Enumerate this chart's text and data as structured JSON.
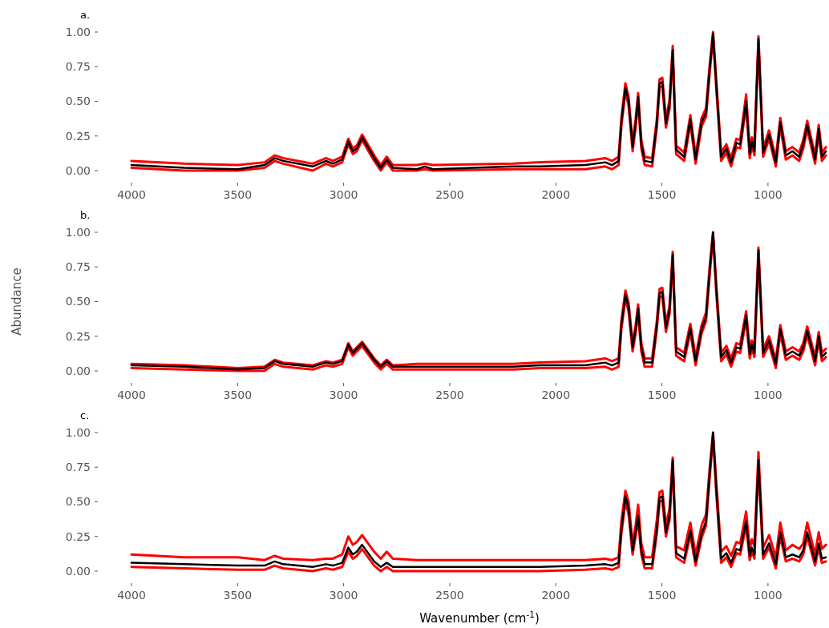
{
  "chart_data": [
    {
      "type": "line",
      "title": "a.",
      "x": [
        4000,
        3751,
        3498,
        3373,
        3325,
        3285,
        3146,
        3083,
        3051,
        3007,
        2978,
        2957,
        2938,
        2913,
        2856,
        2825,
        2797,
        2768,
        2655,
        2617,
        2579,
        2201,
        2075,
        1861,
        1767,
        1735,
        1704,
        1691,
        1672,
        1657,
        1638,
        1624,
        1612,
        1597,
        1581,
        1546,
        1524,
        1511,
        1498,
        1481,
        1464,
        1449,
        1433,
        1395,
        1366,
        1341,
        1313,
        1292,
        1275,
        1259,
        1244,
        1221,
        1196,
        1174,
        1149,
        1131,
        1103,
        1086,
        1076,
        1064,
        1045,
        1023,
        995,
        963,
        942,
        916,
        885,
        853,
        834,
        815,
        778,
        761,
        746,
        727
      ],
      "xlim": [
        4000,
        720
      ],
      "xticks": [
        4000,
        3500,
        3000,
        2500,
        2000,
        1500,
        1000
      ],
      "ylim": [
        0,
        1
      ],
      "yticks": [
        {
          "value": 0,
          "label": "0.00"
        },
        {
          "value": 0.25,
          "label": "0.25"
        },
        {
          "value": 0.5,
          "label": "0.50"
        },
        {
          "value": 0.75,
          "label": "0.75"
        },
        {
          "value": 1,
          "label": "1.00"
        }
      ],
      "grid": false,
      "line_style": "solid",
      "marker": "none",
      "series": [
        {
          "color": "#ff0000",
          "values": [
            0.02,
            0.0,
            0.0,
            0.02,
            0.07,
            0.05,
            0.0,
            0.05,
            0.03,
            0.06,
            0.19,
            0.12,
            0.14,
            0.22,
            0.07,
            0.0,
            0.06,
            0.0,
            0.0,
            0.01,
            0.0,
            0.01,
            0.01,
            0.01,
            0.03,
            0.01,
            0.04,
            0.32,
            0.57,
            0.47,
            0.14,
            0.31,
            0.5,
            0.16,
            0.04,
            0.03,
            0.31,
            0.6,
            0.61,
            0.31,
            0.45,
            0.84,
            0.12,
            0.07,
            0.34,
            0.05,
            0.32,
            0.39,
            0.7,
            0.97,
            0.6,
            0.07,
            0.13,
            0.03,
            0.17,
            0.16,
            0.47,
            0.09,
            0.18,
            0.11,
            0.92,
            0.1,
            0.23,
            0.03,
            0.32,
            0.08,
            0.11,
            0.07,
            0.16,
            0.3,
            0.05,
            0.27,
            0.07,
            0.11
          ]
        },
        {
          "color": "#ff0000",
          "values": [
            0.07,
            0.05,
            0.04,
            0.06,
            0.11,
            0.09,
            0.05,
            0.09,
            0.07,
            0.1,
            0.23,
            0.16,
            0.18,
            0.26,
            0.11,
            0.04,
            0.1,
            0.04,
            0.04,
            0.05,
            0.04,
            0.05,
            0.06,
            0.07,
            0.09,
            0.07,
            0.1,
            0.38,
            0.63,
            0.53,
            0.2,
            0.37,
            0.56,
            0.22,
            0.1,
            0.09,
            0.37,
            0.66,
            0.67,
            0.37,
            0.51,
            0.9,
            0.18,
            0.13,
            0.4,
            0.11,
            0.38,
            0.45,
            0.76,
            1.0,
            0.66,
            0.13,
            0.19,
            0.09,
            0.23,
            0.22,
            0.55,
            0.15,
            0.24,
            0.17,
            0.97,
            0.16,
            0.29,
            0.09,
            0.38,
            0.14,
            0.17,
            0.13,
            0.22,
            0.36,
            0.11,
            0.33,
            0.13,
            0.17
          ]
        },
        {
          "color": "#000000",
          "values": [
            0.04,
            0.02,
            0.01,
            0.04,
            0.09,
            0.07,
            0.03,
            0.07,
            0.05,
            0.08,
            0.21,
            0.14,
            0.16,
            0.24,
            0.09,
            0.02,
            0.08,
            0.02,
            0.01,
            0.03,
            0.01,
            0.03,
            0.03,
            0.04,
            0.06,
            0.04,
            0.07,
            0.35,
            0.6,
            0.5,
            0.17,
            0.34,
            0.53,
            0.19,
            0.07,
            0.06,
            0.34,
            0.63,
            0.64,
            0.34,
            0.48,
            0.87,
            0.15,
            0.1,
            0.37,
            0.08,
            0.35,
            0.42,
            0.73,
            0.99,
            0.63,
            0.1,
            0.16,
            0.06,
            0.2,
            0.19,
            0.5,
            0.12,
            0.21,
            0.14,
            0.95,
            0.13,
            0.26,
            0.06,
            0.35,
            0.11,
            0.14,
            0.1,
            0.19,
            0.33,
            0.08,
            0.3,
            0.1,
            0.14
          ]
        }
      ]
    },
    {
      "type": "line",
      "title": "b.",
      "ylabel": "Abundance",
      "x": [
        4000,
        3751,
        3498,
        3373,
        3325,
        3285,
        3146,
        3083,
        3051,
        3007,
        2978,
        2957,
        2938,
        2913,
        2856,
        2825,
        2797,
        2768,
        2655,
        2617,
        2579,
        2201,
        2075,
        1861,
        1767,
        1735,
        1704,
        1691,
        1672,
        1657,
        1638,
        1624,
        1612,
        1597,
        1581,
        1546,
        1524,
        1511,
        1498,
        1481,
        1464,
        1449,
        1433,
        1395,
        1366,
        1341,
        1313,
        1292,
        1275,
        1259,
        1244,
        1221,
        1196,
        1174,
        1149,
        1131,
        1103,
        1086,
        1076,
        1064,
        1045,
        1023,
        995,
        963,
        942,
        916,
        885,
        853,
        834,
        815,
        778,
        761,
        746,
        727
      ],
      "xlim": [
        4000,
        720
      ],
      "xticks": [
        4000,
        3500,
        3000,
        2500,
        2000,
        1500,
        1000
      ],
      "ylim": [
        0,
        1
      ],
      "yticks": [
        {
          "value": 0,
          "label": "0.00"
        },
        {
          "value": 0.25,
          "label": "0.25"
        },
        {
          "value": 0.5,
          "label": "0.50"
        },
        {
          "value": 0.75,
          "label": "0.75"
        },
        {
          "value": 1,
          "label": "1.00"
        }
      ],
      "grid": false,
      "line_style": "solid",
      "marker": "none",
      "series": [
        {
          "color": "#ff0000",
          "values": [
            0.02,
            0.01,
            0.0,
            0.0,
            0.05,
            0.03,
            0.01,
            0.04,
            0.03,
            0.05,
            0.17,
            0.11,
            0.14,
            0.18,
            0.06,
            0.01,
            0.05,
            0.01,
            0.01,
            0.01,
            0.01,
            0.01,
            0.02,
            0.02,
            0.03,
            0.01,
            0.03,
            0.3,
            0.52,
            0.43,
            0.14,
            0.27,
            0.42,
            0.14,
            0.03,
            0.03,
            0.3,
            0.53,
            0.54,
            0.28,
            0.41,
            0.81,
            0.11,
            0.07,
            0.28,
            0.04,
            0.27,
            0.36,
            0.69,
            0.98,
            0.57,
            0.07,
            0.12,
            0.03,
            0.14,
            0.13,
            0.37,
            0.09,
            0.16,
            0.1,
            0.84,
            0.1,
            0.19,
            0.02,
            0.27,
            0.08,
            0.11,
            0.08,
            0.14,
            0.26,
            0.04,
            0.22,
            0.07,
            0.1
          ]
        },
        {
          "color": "#ff0000",
          "values": [
            0.05,
            0.04,
            0.02,
            0.03,
            0.08,
            0.06,
            0.04,
            0.07,
            0.06,
            0.08,
            0.2,
            0.14,
            0.17,
            0.21,
            0.09,
            0.04,
            0.08,
            0.04,
            0.05,
            0.05,
            0.05,
            0.05,
            0.06,
            0.07,
            0.09,
            0.07,
            0.09,
            0.36,
            0.58,
            0.49,
            0.2,
            0.33,
            0.48,
            0.2,
            0.09,
            0.09,
            0.36,
            0.59,
            0.6,
            0.34,
            0.47,
            0.86,
            0.17,
            0.13,
            0.34,
            0.1,
            0.33,
            0.42,
            0.75,
            1.0,
            0.63,
            0.13,
            0.18,
            0.09,
            0.2,
            0.19,
            0.43,
            0.15,
            0.22,
            0.16,
            0.89,
            0.16,
            0.25,
            0.08,
            0.33,
            0.14,
            0.17,
            0.14,
            0.2,
            0.32,
            0.1,
            0.28,
            0.13,
            0.16
          ]
        },
        {
          "color": "#000000",
          "values": [
            0.04,
            0.03,
            0.01,
            0.02,
            0.07,
            0.05,
            0.03,
            0.06,
            0.05,
            0.07,
            0.19,
            0.13,
            0.16,
            0.2,
            0.08,
            0.03,
            0.07,
            0.03,
            0.03,
            0.03,
            0.03,
            0.03,
            0.04,
            0.04,
            0.06,
            0.04,
            0.06,
            0.33,
            0.55,
            0.46,
            0.17,
            0.3,
            0.45,
            0.17,
            0.06,
            0.06,
            0.33,
            0.56,
            0.57,
            0.31,
            0.44,
            0.84,
            0.14,
            0.1,
            0.31,
            0.07,
            0.3,
            0.39,
            0.72,
            1.0,
            0.6,
            0.1,
            0.15,
            0.06,
            0.17,
            0.16,
            0.4,
            0.12,
            0.19,
            0.13,
            0.87,
            0.13,
            0.22,
            0.05,
            0.3,
            0.11,
            0.14,
            0.11,
            0.17,
            0.29,
            0.07,
            0.25,
            0.1,
            0.13
          ]
        }
      ]
    },
    {
      "type": "line",
      "title": "c.",
      "xlabel": "Wavenumber (cm$^{-1}$)",
      "x": [
        4000,
        3751,
        3498,
        3373,
        3325,
        3285,
        3146,
        3083,
        3051,
        3007,
        2978,
        2957,
        2938,
        2913,
        2856,
        2825,
        2797,
        2768,
        2655,
        2617,
        2579,
        2201,
        2075,
        1861,
        1767,
        1735,
        1704,
        1691,
        1672,
        1657,
        1638,
        1624,
        1612,
        1597,
        1581,
        1546,
        1524,
        1511,
        1498,
        1481,
        1464,
        1449,
        1433,
        1395,
        1366,
        1341,
        1313,
        1292,
        1275,
        1259,
        1244,
        1221,
        1196,
        1174,
        1149,
        1131,
        1103,
        1086,
        1076,
        1064,
        1045,
        1023,
        995,
        963,
        942,
        916,
        885,
        853,
        834,
        815,
        778,
        761,
        746,
        727
      ],
      "xlim": [
        4000,
        720
      ],
      "xticks": [
        4000,
        3500,
        3000,
        2500,
        2000,
        1500,
        1000
      ],
      "ylim": [
        0,
        1
      ],
      "yticks": [
        {
          "value": 0,
          "label": "0.00"
        },
        {
          "value": 0.25,
          "label": "0.25"
        },
        {
          "value": 0.5,
          "label": "0.50"
        },
        {
          "value": 0.75,
          "label": "0.75"
        },
        {
          "value": 1,
          "label": "1.00"
        }
      ],
      "grid": false,
      "line_style": "solid",
      "marker": "none",
      "series": [
        {
          "color": "#ff0000",
          "values": [
            0.03,
            0.02,
            0.01,
            0.01,
            0.04,
            0.02,
            0.0,
            0.02,
            0.01,
            0.03,
            0.14,
            0.09,
            0.11,
            0.16,
            0.04,
            0.0,
            0.03,
            0.0,
            0.0,
            0.0,
            0.0,
            0.0,
            0.0,
            0.01,
            0.02,
            0.01,
            0.03,
            0.27,
            0.5,
            0.41,
            0.12,
            0.25,
            0.37,
            0.12,
            0.02,
            0.02,
            0.27,
            0.5,
            0.51,
            0.25,
            0.37,
            0.77,
            0.1,
            0.06,
            0.26,
            0.04,
            0.24,
            0.33,
            0.67,
            0.97,
            0.57,
            0.06,
            0.1,
            0.03,
            0.13,
            0.12,
            0.33,
            0.08,
            0.14,
            0.09,
            0.77,
            0.09,
            0.17,
            0.02,
            0.25,
            0.07,
            0.09,
            0.07,
            0.12,
            0.25,
            0.04,
            0.17,
            0.06,
            0.07
          ]
        },
        {
          "color": "#ff0000",
          "values": [
            0.12,
            0.1,
            0.1,
            0.08,
            0.11,
            0.09,
            0.08,
            0.09,
            0.09,
            0.12,
            0.25,
            0.19,
            0.21,
            0.26,
            0.14,
            0.09,
            0.14,
            0.09,
            0.08,
            0.08,
            0.08,
            0.08,
            0.08,
            0.08,
            0.09,
            0.08,
            0.1,
            0.36,
            0.58,
            0.5,
            0.2,
            0.33,
            0.48,
            0.2,
            0.1,
            0.1,
            0.37,
            0.57,
            0.58,
            0.33,
            0.45,
            0.82,
            0.18,
            0.15,
            0.35,
            0.12,
            0.33,
            0.41,
            0.74,
            1.0,
            0.65,
            0.14,
            0.18,
            0.11,
            0.21,
            0.2,
            0.43,
            0.16,
            0.23,
            0.18,
            0.86,
            0.17,
            0.26,
            0.1,
            0.35,
            0.15,
            0.19,
            0.16,
            0.2,
            0.35,
            0.12,
            0.28,
            0.16,
            0.19
          ]
        },
        {
          "color": "#000000",
          "values": [
            0.06,
            0.05,
            0.04,
            0.04,
            0.07,
            0.05,
            0.03,
            0.05,
            0.04,
            0.06,
            0.17,
            0.12,
            0.14,
            0.19,
            0.07,
            0.03,
            0.06,
            0.03,
            0.03,
            0.03,
            0.03,
            0.03,
            0.03,
            0.04,
            0.05,
            0.04,
            0.06,
            0.3,
            0.54,
            0.45,
            0.15,
            0.28,
            0.4,
            0.15,
            0.05,
            0.05,
            0.3,
            0.53,
            0.54,
            0.28,
            0.4,
            0.8,
            0.13,
            0.09,
            0.29,
            0.07,
            0.27,
            0.36,
            0.7,
            1.0,
            0.6,
            0.09,
            0.13,
            0.06,
            0.16,
            0.15,
            0.36,
            0.11,
            0.17,
            0.12,
            0.8,
            0.12,
            0.2,
            0.05,
            0.28,
            0.1,
            0.12,
            0.1,
            0.15,
            0.28,
            0.07,
            0.2,
            0.09,
            0.1
          ]
        }
      ]
    }
  ]
}
